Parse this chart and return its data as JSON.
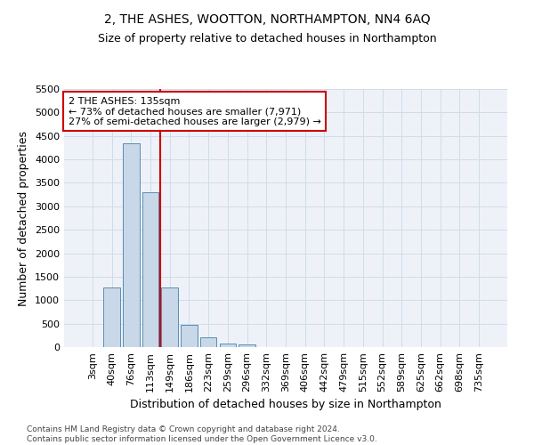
{
  "title": "2, THE ASHES, WOOTTON, NORTHAMPTON, NN4 6AQ",
  "subtitle": "Size of property relative to detached houses in Northampton",
  "xlabel": "Distribution of detached houses by size in Northampton",
  "ylabel": "Number of detached properties",
  "footer_line1": "Contains HM Land Registry data © Crown copyright and database right 2024.",
  "footer_line2": "Contains public sector information licensed under the Open Government Licence v3.0.",
  "bar_labels": [
    "3sqm",
    "40sqm",
    "76sqm",
    "113sqm",
    "149sqm",
    "186sqm",
    "223sqm",
    "259sqm",
    "296sqm",
    "332sqm",
    "369sqm",
    "406sqm",
    "442sqm",
    "479sqm",
    "515sqm",
    "552sqm",
    "589sqm",
    "625sqm",
    "662sqm",
    "698sqm",
    "735sqm"
  ],
  "bar_values": [
    0,
    1270,
    4350,
    3300,
    1270,
    480,
    215,
    80,
    50,
    0,
    0,
    0,
    0,
    0,
    0,
    0,
    0,
    0,
    0,
    0,
    0
  ],
  "bar_color": "#c8d8e8",
  "bar_edge_color": "#5a8db5",
  "vline_x": 3.5,
  "vline_color": "#cc0000",
  "annotation_text": "2 THE ASHES: 135sqm\n← 73% of detached houses are smaller (7,971)\n27% of semi-detached houses are larger (2,979) →",
  "annotation_box_color": "#ffffff",
  "annotation_box_edge_color": "#cc0000",
  "ylim": [
    0,
    5500
  ],
  "yticks": [
    0,
    500,
    1000,
    1500,
    2000,
    2500,
    3000,
    3500,
    4000,
    4500,
    5000,
    5500
  ],
  "grid_color": "#d0dcea",
  "background_color": "#eef2f8",
  "title_fontsize": 10,
  "subtitle_fontsize": 9,
  "ylabel_fontsize": 9,
  "xlabel_fontsize": 9,
  "tick_fontsize": 8,
  "annotation_fontsize": 8,
  "footer_fontsize": 6.5
}
